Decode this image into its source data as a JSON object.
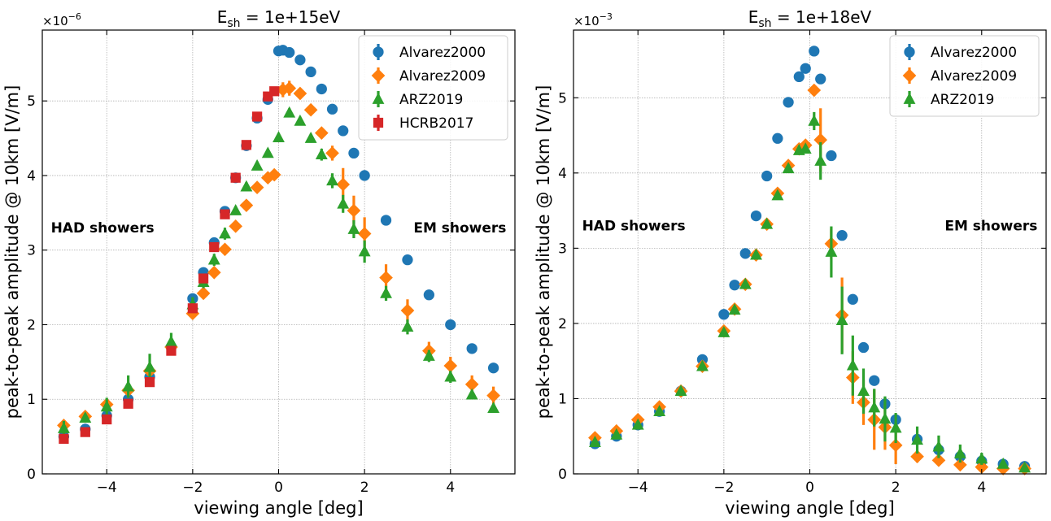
{
  "chart_data": [
    {
      "type": "scatter",
      "title_prefix": "E",
      "title_sub": "sh",
      "title_rest": " = 1e+15eV",
      "xlabel": "viewing angle [deg]",
      "ylabel": "peak-to-peak amplitude @ 10km [V/m]",
      "y_scale_base": "×10",
      "y_scale_exp": "−6",
      "xlim": [
        -5.5,
        5.5
      ],
      "ylim": [
        0,
        5.95
      ],
      "xticks": [
        -4,
        -2,
        0,
        2,
        4
      ],
      "xtick_labels": [
        "−4",
        "−2",
        "0",
        "2",
        "4"
      ],
      "yticks": [
        0,
        1,
        2,
        3,
        4,
        5
      ],
      "ytick_labels": [
        "0",
        "1",
        "2",
        "3",
        "4",
        "5"
      ],
      "grid": true,
      "legend_position": "top-right",
      "annotations": [
        {
          "text": "HAD showers",
          "x": -5.3,
          "y": 3.3,
          "anchor": "start"
        },
        {
          "text": "EM showers",
          "x": 5.3,
          "y": 3.3,
          "anchor": "end"
        }
      ],
      "series": [
        {
          "name": "Alvarez2000",
          "marker": "circle",
          "color": "#1f77b4",
          "x": [
            -5,
            -4.5,
            -4,
            -3.5,
            -3,
            -2.5,
            -2,
            -1.75,
            -1.5,
            -1.25,
            -1,
            -0.75,
            -0.5,
            -0.25,
            0,
            0.1,
            0.25,
            0.5,
            0.75,
            1,
            1.25,
            1.5,
            1.75,
            2,
            2.5,
            3,
            3.5,
            4,
            4.5,
            5
          ],
          "y": [
            0.5,
            0.6,
            0.78,
            1.0,
            1.3,
            1.7,
            2.35,
            2.7,
            3.1,
            3.52,
            3.97,
            4.4,
            4.77,
            5.02,
            5.67,
            5.68,
            5.65,
            5.55,
            5.39,
            5.16,
            4.89,
            4.6,
            4.3,
            4.0,
            3.4,
            2.87,
            2.4,
            2.0,
            1.68,
            1.42
          ],
          "err": []
        },
        {
          "name": "Alvarez2009",
          "marker": "diamond",
          "color": "#ff7f0e",
          "x": [
            -5,
            -4.5,
            -4,
            -3.5,
            -3,
            -2.5,
            -2,
            -1.75,
            -1.5,
            -1.25,
            -1,
            -0.75,
            -0.5,
            -0.25,
            -0.1,
            0.1,
            0.25,
            0.5,
            0.75,
            1,
            1.25,
            1.5,
            1.75,
            2,
            2.5,
            3,
            3.5,
            4,
            4.5,
            5
          ],
          "y": [
            0.65,
            0.77,
            0.93,
            1.12,
            1.38,
            1.7,
            2.15,
            2.42,
            2.7,
            3.01,
            3.32,
            3.6,
            3.84,
            3.97,
            4.01,
            5.15,
            5.17,
            5.1,
            4.88,
            4.57,
            4.3,
            3.88,
            3.53,
            3.22,
            2.63,
            2.19,
            1.65,
            1.45,
            1.2,
            1.05
          ],
          "err": [
            0.05,
            0.05,
            0.05,
            0.1,
            0.1,
            0.05,
            0.05,
            0.05,
            0.05,
            0.05,
            0.05,
            0.05,
            0.05,
            0.05,
            0.05,
            0.1,
            0.1,
            0.05,
            0.05,
            0.05,
            0.1,
            0.22,
            0.2,
            0.22,
            0.18,
            0.15,
            0.12,
            0.12,
            0.12,
            0.12
          ]
        },
        {
          "name": "ARZ2019",
          "marker": "triangle",
          "color": "#2ca02c",
          "x": [
            -5,
            -4.5,
            -4,
            -3.5,
            -3,
            -2.5,
            -2,
            -1.75,
            -1.5,
            -1.25,
            -1,
            -0.75,
            -0.5,
            -0.25,
            0,
            0.25,
            0.5,
            0.75,
            1,
            1.25,
            1.5,
            1.75,
            2,
            2.5,
            3,
            3.5,
            4,
            4.5,
            5
          ],
          "y": [
            0.61,
            0.75,
            0.9,
            1.17,
            1.43,
            1.77,
            2.27,
            2.57,
            2.87,
            3.22,
            3.53,
            3.85,
            4.13,
            4.3,
            4.51,
            4.84,
            4.73,
            4.5,
            4.28,
            3.93,
            3.62,
            3.28,
            2.98,
            2.42,
            1.97,
            1.58,
            1.3,
            1.06,
            0.88
          ],
          "err": [
            0.1,
            0.06,
            0.12,
            0.15,
            0.18,
            0.12,
            0.1,
            0.08,
            0.08,
            0.08,
            0.06,
            0.06,
            0.06,
            0.06,
            0.06,
            0.06,
            0.06,
            0.06,
            0.08,
            0.1,
            0.12,
            0.12,
            0.15,
            0.1,
            0.1,
            0.08,
            0.08,
            0.06,
            0.06
          ]
        },
        {
          "name": "HCRB2017",
          "marker": "square",
          "color": "#d62728",
          "x": [
            -5,
            -4.5,
            -4,
            -3.5,
            -3,
            -2.5,
            -2,
            -1.75,
            -1.5,
            -1.25,
            -1,
            -0.75,
            -0.5,
            -0.25,
            -0.1
          ],
          "y": [
            0.47,
            0.56,
            0.73,
            0.94,
            1.23,
            1.65,
            2.22,
            2.62,
            3.04,
            3.48,
            3.97,
            4.41,
            4.79,
            5.06,
            5.13
          ],
          "err": []
        }
      ]
    },
    {
      "type": "scatter",
      "title_prefix": "E",
      "title_sub": "sh",
      "title_rest": " = 1e+18eV",
      "xlabel": "viewing angle [deg]",
      "ylabel": "peak-to-peak amplitude @ 10km [V/m]",
      "y_scale_base": "×10",
      "y_scale_exp": "−3",
      "xlim": [
        -5.5,
        5.5
      ],
      "ylim": [
        0,
        5.9
      ],
      "xticks": [
        -4,
        -2,
        0,
        2,
        4
      ],
      "xtick_labels": [
        "−4",
        "−2",
        "0",
        "2",
        "4"
      ],
      "yticks": [
        0,
        1,
        2,
        3,
        4,
        5
      ],
      "ytick_labels": [
        "0",
        "1",
        "2",
        "3",
        "4",
        "5"
      ],
      "grid": true,
      "legend_position": "top-right",
      "annotations": [
        {
          "text": "HAD showers",
          "x": -5.3,
          "y": 3.3,
          "anchor": "start"
        },
        {
          "text": "EM showers",
          "x": 5.3,
          "y": 3.3,
          "anchor": "end"
        }
      ],
      "series": [
        {
          "name": "Alvarez2000",
          "marker": "circle",
          "color": "#1f77b4",
          "x": [
            -5,
            -4.5,
            -4,
            -3.5,
            -3,
            -2.5,
            -2,
            -1.75,
            -1.5,
            -1.25,
            -1,
            -0.75,
            -0.5,
            -0.25,
            -0.1,
            0.1,
            0.25,
            0.5,
            0.75,
            1,
            1.25,
            1.5,
            1.75,
            2,
            2.5,
            3,
            3.5,
            4,
            4.5,
            5
          ],
          "y": [
            0.4,
            0.5,
            0.65,
            0.83,
            1.1,
            1.52,
            2.12,
            2.51,
            2.93,
            3.43,
            3.96,
            4.46,
            4.94,
            5.28,
            5.39,
            5.62,
            5.25,
            4.23,
            3.17,
            2.32,
            1.68,
            1.24,
            0.93,
            0.72,
            0.46,
            0.32,
            0.23,
            0.17,
            0.13,
            0.1
          ],
          "err": []
        },
        {
          "name": "Alvarez2009",
          "marker": "diamond",
          "color": "#ff7f0e",
          "x": [
            -5,
            -4.5,
            -4,
            -3.5,
            -3,
            -2.5,
            -2,
            -1.75,
            -1.5,
            -1.25,
            -1,
            -0.75,
            -0.5,
            -0.25,
            -0.1,
            0.1,
            0.25,
            0.5,
            0.75,
            1,
            1.25,
            1.5,
            1.75,
            2,
            2.5,
            3,
            3.5,
            4,
            4.5,
            5
          ],
          "y": [
            0.48,
            0.57,
            0.72,
            0.89,
            1.1,
            1.43,
            1.9,
            2.19,
            2.52,
            2.91,
            3.32,
            3.73,
            4.1,
            4.32,
            4.37,
            5.1,
            4.44,
            3.06,
            2.11,
            1.28,
            0.95,
            0.72,
            0.62,
            0.38,
            0.23,
            0.18,
            0.12,
            0.09,
            0.07,
            0.07
          ],
          "err": [
            0.03,
            0.03,
            0.05,
            0.05,
            0.05,
            0.05,
            0.05,
            0.05,
            0.05,
            0.05,
            0.05,
            0.05,
            0.05,
            0.05,
            0.05,
            0.05,
            0.42,
            0.2,
            0.5,
            0.35,
            0.3,
            0.4,
            0.3,
            0.25,
            0.08,
            0.06,
            0.05,
            0.04,
            0.03,
            0.03
          ]
        },
        {
          "name": "ARZ2019",
          "marker": "triangle",
          "color": "#2ca02c",
          "x": [
            -5,
            -4.5,
            -4,
            -3.5,
            -3,
            -2.5,
            -2,
            -1.75,
            -1.5,
            -1.25,
            -1,
            -0.75,
            -0.5,
            -0.25,
            -0.1,
            0.1,
            0.25,
            0.5,
            0.75,
            1,
            1.25,
            1.5,
            1.75,
            2,
            2.5,
            3,
            3.5,
            4,
            4.5,
            5
          ],
          "y": [
            0.42,
            0.52,
            0.65,
            0.83,
            1.1,
            1.43,
            1.88,
            2.18,
            2.52,
            2.91,
            3.32,
            3.7,
            4.06,
            4.3,
            4.32,
            4.69,
            4.16,
            2.95,
            2.04,
            1.44,
            1.1,
            0.88,
            0.73,
            0.61,
            0.45,
            0.36,
            0.27,
            0.2,
            0.13,
            0.08
          ],
          "err": [
            0.05,
            0.05,
            0.05,
            0.05,
            0.05,
            0.05,
            0.05,
            0.05,
            0.05,
            0.05,
            0.05,
            0.05,
            0.05,
            0.05,
            0.05,
            0.12,
            0.25,
            0.34,
            0.45,
            0.4,
            0.3,
            0.25,
            0.3,
            0.2,
            0.18,
            0.15,
            0.12,
            0.08,
            0.05,
            0.04
          ]
        }
      ]
    }
  ]
}
